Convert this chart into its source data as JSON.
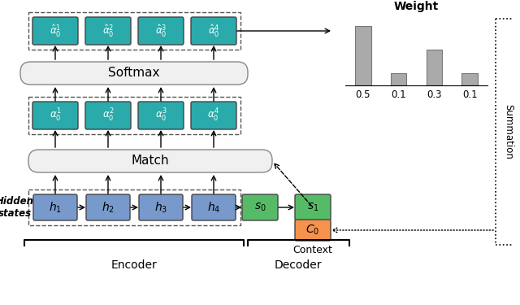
{
  "bg_color": "#ffffff",
  "teal_color": "#2aaaaa",
  "blue_color": "#7799cc",
  "green_color": "#55bb66",
  "orange_color": "#f5924e",
  "softmax_bg": "#f0f0f0",
  "match_bg": "#f0f0f0",
  "bar_values": [
    0.5,
    0.1,
    0.3,
    0.1
  ],
  "bar_labels": [
    "0.5",
    "0.1",
    "0.3",
    "0.1"
  ],
  "weight_title": "Weight",
  "encoder_label": "Encoder",
  "decoder_label": "Decoder",
  "hidden_states_label": "Hidden\nstates",
  "summation_label": "Summation",
  "context_label": "Context"
}
